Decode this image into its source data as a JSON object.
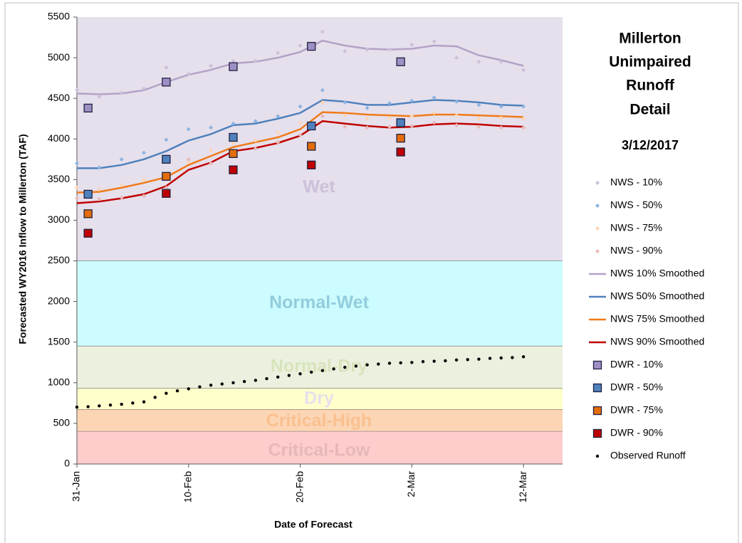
{
  "chart_data": {
    "type": "line",
    "title": [
      "Millerton",
      "Unimpaired",
      "Runoff",
      "Detail"
    ],
    "subtitle": "3/12/2017",
    "x_label": "Date of Forecast",
    "y_label": "Forecasted WY2016 Inflow to Millerton (TAF)",
    "xlim": [
      0,
      43.5
    ],
    "xticks": [
      {
        "value": 0,
        "label": "31-Jan"
      },
      {
        "value": 10,
        "label": "10-Feb"
      },
      {
        "value": 20,
        "label": "20-Feb"
      },
      {
        "value": 30,
        "label": "2-Mar"
      },
      {
        "value": 40,
        "label": "12-Mar"
      }
    ],
    "ylim": [
      0,
      5500
    ],
    "yticks": [
      0,
      500,
      1000,
      1500,
      2000,
      2500,
      3000,
      3500,
      4000,
      4500,
      5000,
      5500
    ],
    "bands": [
      {
        "name": "Wet",
        "range": [
          2500,
          5500
        ],
        "color": "#e6e0ec",
        "label_color": "#ccc0da"
      },
      {
        "name": "Normal-Wet",
        "range": [
          1450,
          2500
        ],
        "color": "#ccfcff",
        "label_color": "#93cddd"
      },
      {
        "name": "Normal-Dry",
        "range": [
          930,
          1450
        ],
        "color": "#ebf1de",
        "label_color": "#d7e4bd"
      },
      {
        "name": "Dry",
        "range": [
          670,
          930
        ],
        "color": "#ffffcc",
        "label_color": "#e6e0ec"
      },
      {
        "name": "Critical-High",
        "range": [
          400,
          670
        ],
        "color": "#fcd5b4",
        "label_color": "#fac090"
      },
      {
        "name": "Critical-Low",
        "range": [
          0,
          400
        ],
        "color": "#ffcccc",
        "label_color": "#e6b9b8"
      }
    ],
    "series": [
      {
        "name": "NWS - 10%",
        "kind": "scatter",
        "marker": "diamond",
        "color": "#ccc0da",
        "x": [
          0,
          2,
          4,
          6,
          8,
          10,
          12,
          14,
          16,
          18,
          20,
          22,
          24,
          26,
          28,
          30,
          32,
          34,
          36,
          38,
          40
        ],
        "values": [
          4600,
          4520,
          4570,
          4620,
          4880,
          4800,
          4900,
          4960,
          4960,
          5060,
          5150,
          5320,
          5080,
          5100,
          5100,
          5160,
          5200,
          5000,
          4950,
          4950,
          4850
        ]
      },
      {
        "name": "NWS - 50%",
        "kind": "scatter",
        "marker": "diamond",
        "color": "#8db4e2",
        "x": [
          0,
          2,
          4,
          6,
          8,
          10,
          12,
          14,
          16,
          18,
          20,
          22,
          24,
          26,
          28,
          30,
          32,
          34,
          36,
          38,
          40
        ],
        "values": [
          3700,
          3650,
          3750,
          3830,
          3990,
          4120,
          4140,
          4190,
          4220,
          4280,
          4400,
          4600,
          4450,
          4380,
          4440,
          4470,
          4510,
          4460,
          4420,
          4400,
          4400
        ]
      },
      {
        "name": "NWS - 75%",
        "kind": "scatter",
        "marker": "diamond",
        "color": "#fcd5b4",
        "x": [
          0,
          2,
          4,
          6,
          8,
          10,
          12,
          14,
          16,
          18,
          20,
          22,
          24,
          26,
          28,
          30,
          32,
          34,
          36,
          38,
          40
        ],
        "values": [
          3400,
          3380,
          3430,
          3500,
          3550,
          3720,
          3860,
          3950,
          3980,
          4080,
          4200,
          4450,
          4290,
          4250,
          4260,
          4280,
          4320,
          4290,
          4250,
          4260,
          4250
        ]
      },
      {
        "name": "NWS - 90%",
        "kind": "scatter",
        "marker": "diamond",
        "color": "#e6b9b8",
        "x": [
          0,
          2,
          4,
          6,
          8,
          10,
          12,
          14,
          16,
          18,
          20,
          22,
          24,
          26,
          28,
          30,
          32,
          34,
          36,
          38,
          40
        ],
        "values": [
          3270,
          3260,
          3280,
          3300,
          3400,
          3750,
          3700,
          3860,
          3880,
          3960,
          4050,
          4280,
          4150,
          4140,
          4150,
          4160,
          4200,
          4170,
          4150,
          4140,
          4140
        ]
      },
      {
        "name": "NWS 10% Smoothed",
        "kind": "line",
        "color": "#b3a2c7",
        "x": [
          0,
          2,
          4,
          6,
          8,
          10,
          12,
          14,
          16,
          18,
          20,
          22,
          24,
          26,
          28,
          30,
          32,
          34,
          36,
          38,
          40
        ],
        "values": [
          4560,
          4550,
          4560,
          4600,
          4700,
          4790,
          4850,
          4930,
          4950,
          5000,
          5070,
          5210,
          5150,
          5110,
          5100,
          5110,
          5150,
          5140,
          5030,
          4970,
          4900
        ]
      },
      {
        "name": "NWS 50% Smoothed",
        "kind": "line",
        "color": "#4f81bd",
        "x": [
          0,
          2,
          4,
          6,
          8,
          10,
          12,
          14,
          16,
          18,
          20,
          22,
          24,
          26,
          28,
          30,
          32,
          34,
          36,
          38,
          40
        ],
        "values": [
          3640,
          3640,
          3680,
          3750,
          3850,
          3980,
          4060,
          4170,
          4190,
          4250,
          4320,
          4480,
          4460,
          4420,
          4420,
          4450,
          4480,
          4470,
          4450,
          4420,
          4410
        ]
      },
      {
        "name": "NWS 75% Smoothed",
        "kind": "line",
        "color": "#f07a1a",
        "x": [
          0,
          2,
          4,
          6,
          8,
          10,
          12,
          14,
          16,
          18,
          20,
          22,
          24,
          26,
          28,
          30,
          32,
          34,
          36,
          38,
          40
        ],
        "values": [
          3340,
          3350,
          3400,
          3460,
          3530,
          3680,
          3790,
          3900,
          3960,
          4020,
          4120,
          4330,
          4320,
          4300,
          4290,
          4280,
          4300,
          4300,
          4290,
          4280,
          4270
        ]
      },
      {
        "name": "NWS 90% Smoothed",
        "kind": "line",
        "color": "#c00000",
        "x": [
          0,
          2,
          4,
          6,
          8,
          10,
          12,
          14,
          16,
          18,
          20,
          22,
          24,
          26,
          28,
          30,
          32,
          34,
          36,
          38,
          40
        ],
        "values": [
          3210,
          3230,
          3270,
          3320,
          3420,
          3620,
          3710,
          3850,
          3890,
          3950,
          4040,
          4220,
          4190,
          4160,
          4140,
          4150,
          4180,
          4190,
          4180,
          4160,
          4150
        ]
      },
      {
        "name": "DWR - 10%",
        "kind": "scatter",
        "marker": "square",
        "color": "#9f8fc5",
        "x": [
          1,
          8,
          14,
          21,
          29
        ],
        "values": [
          4380,
          4700,
          4890,
          5140,
          4950
        ]
      },
      {
        "name": "DWR - 50%",
        "kind": "scatter",
        "marker": "square",
        "color": "#4f81bd",
        "x": [
          1,
          8,
          14,
          21,
          29
        ],
        "values": [
          3320,
          3750,
          4020,
          4160,
          4200
        ]
      },
      {
        "name": "DWR - 75%",
        "kind": "scatter",
        "marker": "square",
        "color": "#e46c0a",
        "x": [
          1,
          8,
          14,
          21,
          29
        ],
        "values": [
          3080,
          3540,
          3820,
          3910,
          4010
        ]
      },
      {
        "name": "DWR - 90%",
        "kind": "scatter",
        "marker": "square",
        "color": "#c00000",
        "x": [
          1,
          8,
          14,
          21,
          29
        ],
        "values": [
          2840,
          3330,
          3620,
          3680,
          3840
        ]
      },
      {
        "name": "Observed Runoff",
        "kind": "scatter",
        "marker": "circle",
        "color": "#000000",
        "x": [
          0,
          1,
          2,
          3,
          4,
          5,
          6,
          7,
          8,
          9,
          10,
          11,
          12,
          13,
          14,
          15,
          16,
          17,
          18,
          19,
          20,
          21,
          22,
          23,
          24,
          25,
          26,
          27,
          28,
          29,
          30,
          31,
          32,
          33,
          34,
          35,
          36,
          37,
          38,
          39,
          40
        ],
        "values": [
          700,
          705,
          715,
          725,
          735,
          750,
          765,
          820,
          870,
          900,
          925,
          950,
          970,
          985,
          1000,
          1015,
          1030,
          1050,
          1070,
          1090,
          1110,
          1130,
          1150,
          1170,
          1190,
          1205,
          1220,
          1230,
          1240,
          1245,
          1250,
          1260,
          1265,
          1270,
          1280,
          1285,
          1290,
          1300,
          1305,
          1310,
          1320
        ]
      }
    ]
  }
}
